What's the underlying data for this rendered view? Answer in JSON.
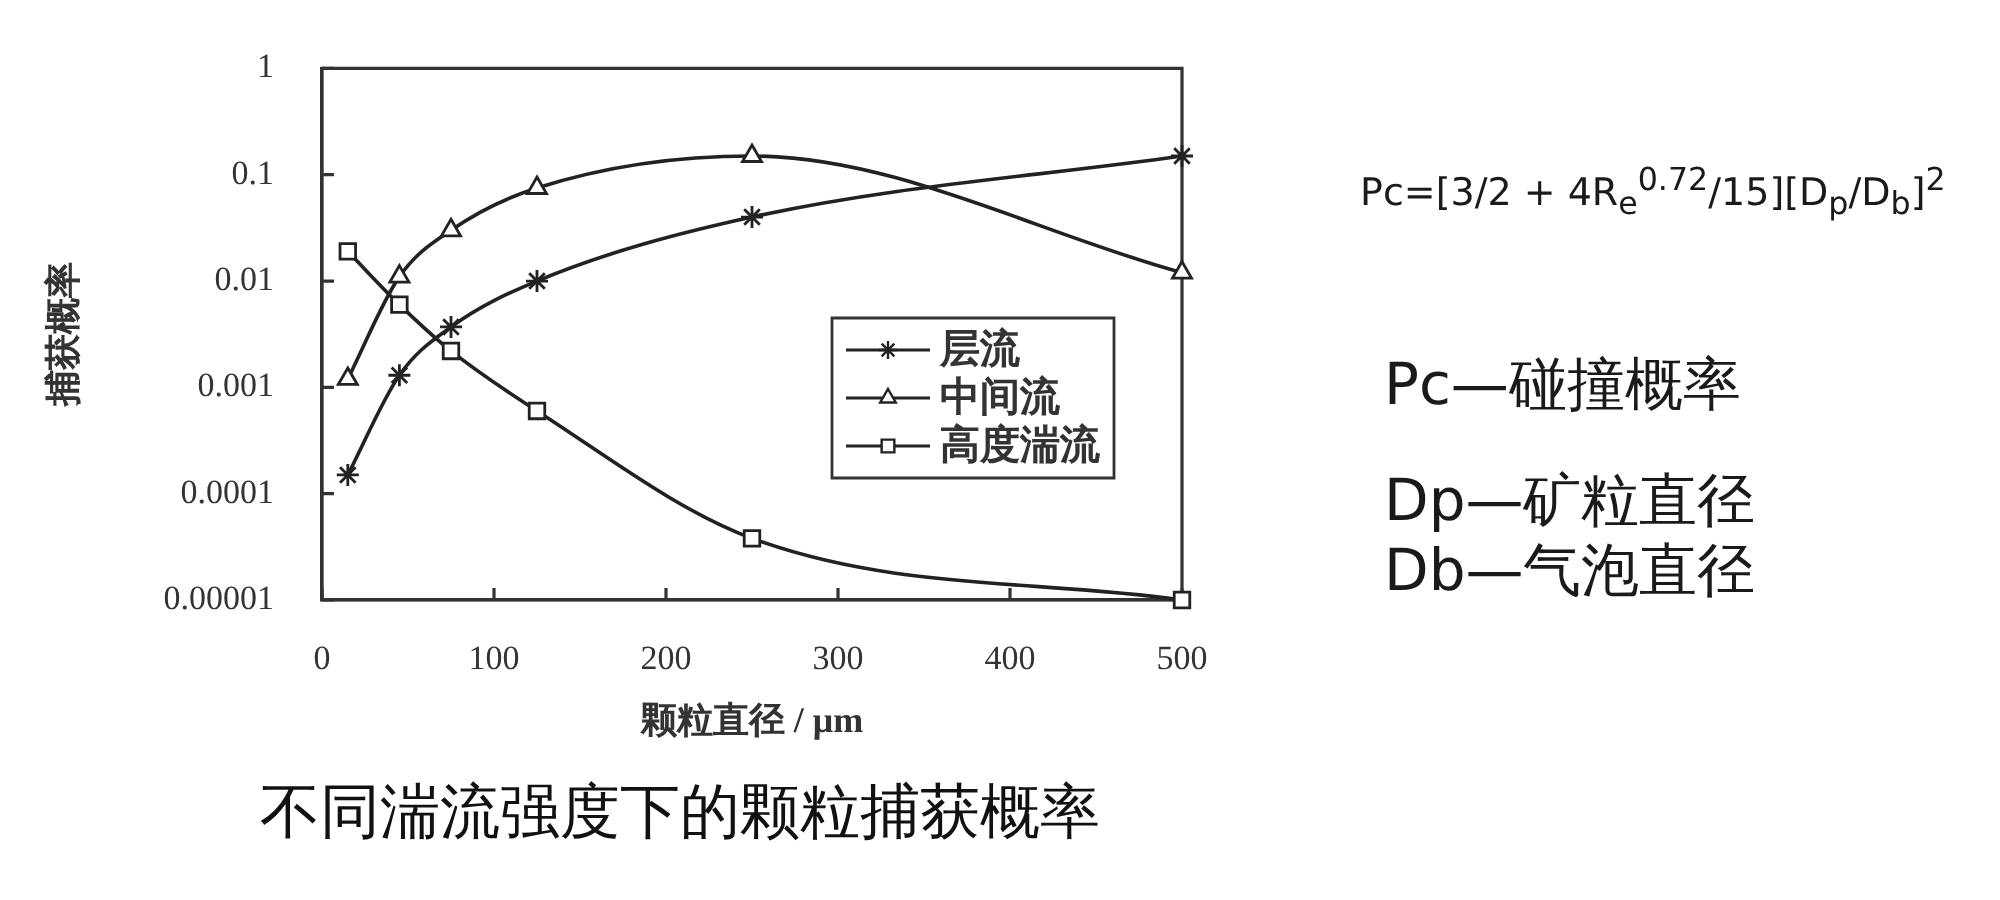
{
  "chart_data": {
    "type": "line",
    "annotations": [
      "Pc=[3/2 + 4R$_{e}$$^{0.72}$/15][D$_{p}$/D$_{b}$]$^{2}$",
      "Pc—碰撞概率",
      "Dp—矿粒直径",
      "Db—气泡直径",
      "不同湍流强度下的颗粒捕获概率"
    ],
    "xlabel": "颗粒直径 / μm",
    "ylabel": "捕获概率",
    "x": [
      15,
      45,
      75,
      125,
      250,
      500
    ],
    "series": [
      {
        "name": "层流",
        "color": "#222222",
        "marker": "cross",
        "values": [
          0.00015,
          0.0013,
          0.0037,
          0.01,
          0.04,
          0.15
        ]
      },
      {
        "name": "中间流",
        "color": "#222222",
        "marker": "triangle",
        "values": [
          0.0012,
          0.011,
          0.03,
          0.075,
          0.15,
          0.012
        ]
      },
      {
        "name": "高度湍流",
        "color": "#222222",
        "marker": "square",
        "values": [
          0.019,
          0.006,
          0.0022,
          0.0006,
          3.8e-05,
          1e-05
        ]
      }
    ],
    "xlim": [
      0,
      500
    ],
    "xticks": [
      0,
      100,
      200,
      300,
      400,
      500
    ],
    "ylim": [
      1e-05,
      1
    ],
    "yticks": [
      {
        "value": 1e-05,
        "label": "0.00001"
      },
      0.0001,
      0.001,
      0.01,
      0.1,
      1
    ],
    "log": "y",
    "grid": false,
    "legend": "right"
  }
}
